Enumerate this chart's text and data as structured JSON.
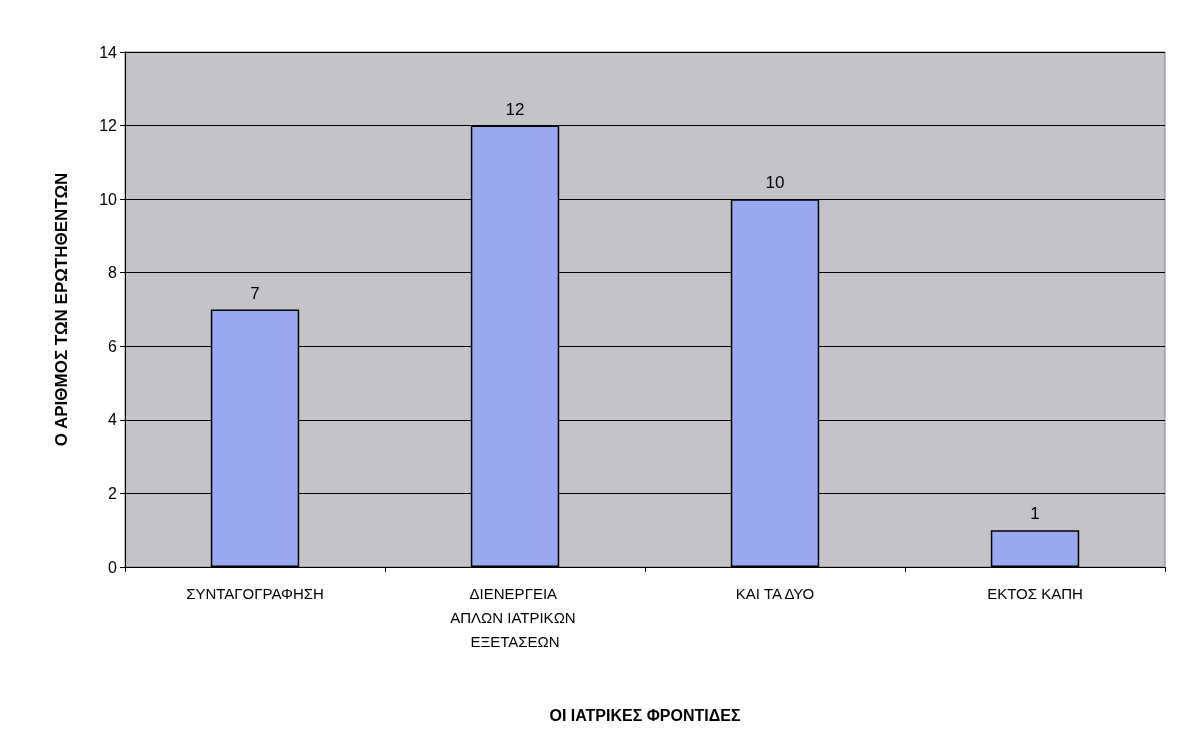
{
  "chart_data": {
    "type": "bar",
    "xlabel": "ΟΙ ΙΑΤΡΙΚΕΣ ΦΡΟΝΤΙΔΕΣ",
    "ylabel": "Ο ΑΡΙΘΜΟΣ ΤΩΝ ΕΡΩΤΗΘΕΝΤΩΝ",
    "categories": [
      "ΣΥΝΤΑΓΟΓΡΑΦΗΣΗ",
      "ΔΙΕΝΕΡΓΕΙΑ ΑΠΛΩΝ ΙΑΤΡΙΚΩΝ ΕΞΕΤΑΣΕΩΝ",
      "ΚΑΙ ΤΑ ΔΥΟ",
      "ΕΚΤΟΣ ΚΑΠΗ"
    ],
    "values": [
      7,
      12,
      10,
      1
    ],
    "color": "#99a8f0",
    "ylim": [
      0,
      14
    ],
    "yticks": [
      0,
      2,
      4,
      6,
      8,
      10,
      12,
      14
    ],
    "grid": "y",
    "data_labels": true
  }
}
